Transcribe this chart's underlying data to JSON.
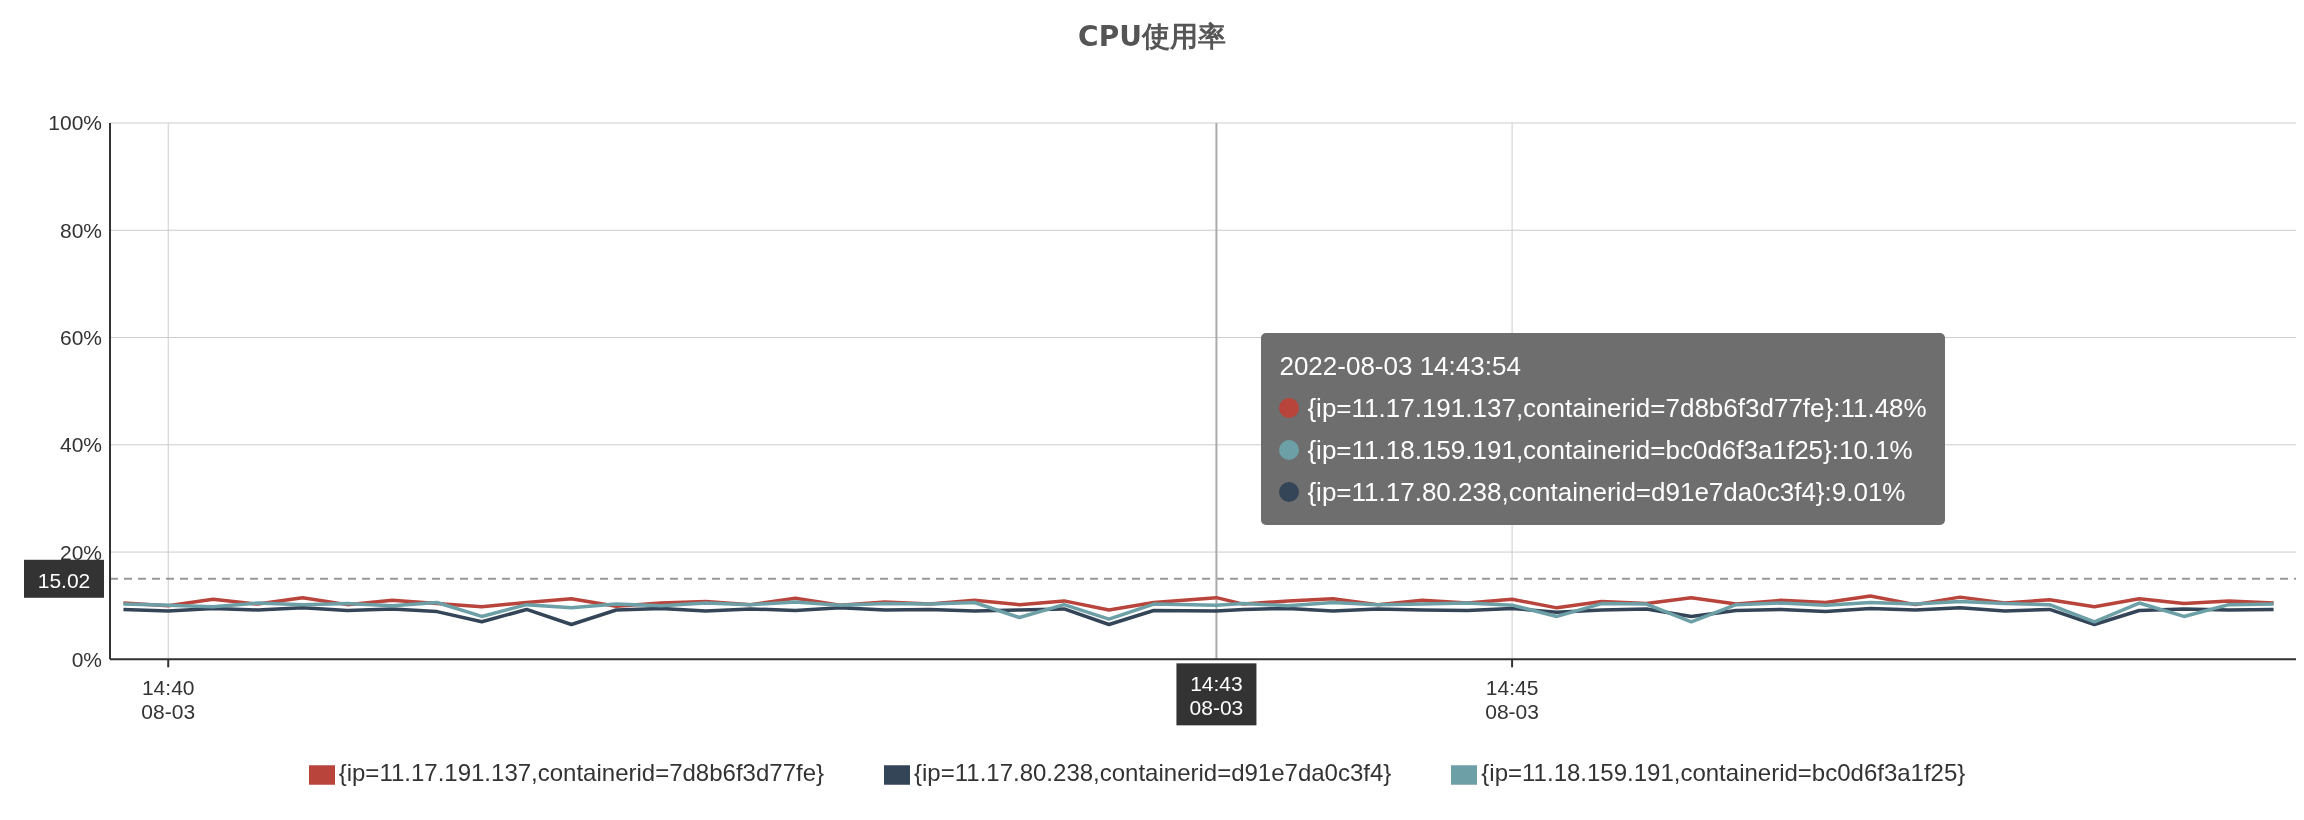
{
  "chart_data": {
    "type": "line",
    "title": "CPU使用率",
    "x": [
      "2022-08-03T14:39:50",
      "2022-08-03T14:40:00",
      "2022-08-03T14:40:10",
      "2022-08-03T14:40:20",
      "2022-08-03T14:40:30",
      "2022-08-03T14:40:40",
      "2022-08-03T14:40:50",
      "2022-08-03T14:41:00",
      "2022-08-03T14:41:10",
      "2022-08-03T14:41:20",
      "2022-08-03T14:41:30",
      "2022-08-03T14:41:40",
      "2022-08-03T14:41:50",
      "2022-08-03T14:42:00",
      "2022-08-03T14:42:10",
      "2022-08-03T14:42:20",
      "2022-08-03T14:42:30",
      "2022-08-03T14:42:40",
      "2022-08-03T14:42:50",
      "2022-08-03T14:43:00",
      "2022-08-03T14:43:10",
      "2022-08-03T14:43:20",
      "2022-08-03T14:43:30",
      "2022-08-03T14:43:40",
      "2022-08-03T14:43:54",
      "2022-08-03T14:44:00",
      "2022-08-03T14:44:10",
      "2022-08-03T14:44:20",
      "2022-08-03T14:44:30",
      "2022-08-03T14:44:40",
      "2022-08-03T14:44:50",
      "2022-08-03T14:45:00",
      "2022-08-03T14:45:10",
      "2022-08-03T14:45:20",
      "2022-08-03T14:45:30",
      "2022-08-03T14:45:40",
      "2022-08-03T14:45:50",
      "2022-08-03T14:46:00",
      "2022-08-03T14:46:10",
      "2022-08-03T14:46:20",
      "2022-08-03T14:46:30",
      "2022-08-03T14:46:40",
      "2022-08-03T14:46:50",
      "2022-08-03T14:47:00",
      "2022-08-03T14:47:10",
      "2022-08-03T14:47:20",
      "2022-08-03T14:47:30",
      "2022-08-03T14:47:40",
      "2022-08-03T14:47:50"
    ],
    "series": [
      {
        "name": "{ip=11.17.191.137,containerid=7d8b6f3d77fe}",
        "color": "#b8443b",
        "values": [
          10.5,
          10.0,
          11.2,
          10.3,
          11.5,
          10.2,
          11.0,
          10.4,
          9.8,
          10.6,
          11.3,
          9.9,
          10.5,
          10.8,
          10.2,
          11.4,
          10.1,
          10.7,
          10.3,
          11.0,
          10.2,
          10.9,
          9.2,
          10.6,
          11.5,
          10.3,
          10.9,
          11.3,
          10.2,
          11.0,
          10.5,
          11.2,
          9.6,
          10.8,
          10.4,
          11.5,
          10.3,
          11.0,
          10.6,
          11.8,
          10.2,
          11.6,
          10.5,
          11.1,
          9.8,
          11.3,
          10.4,
          10.9,
          10.5
        ]
      },
      {
        "name": "{ip=11.17.80.238,containerid=d91e7da0c3f4}",
        "color": "#344558",
        "values": [
          9.3,
          9.0,
          9.5,
          9.2,
          9.6,
          9.1,
          9.4,
          8.9,
          7.0,
          9.3,
          6.5,
          9.2,
          9.5,
          9.0,
          9.4,
          9.1,
          9.6,
          9.2,
          9.3,
          9.0,
          9.2,
          9.4,
          6.5,
          9.1,
          9.0,
          9.3,
          9.5,
          9.0,
          9.4,
          9.2,
          9.1,
          9.5,
          8.8,
          9.2,
          9.4,
          8.0,
          9.1,
          9.3,
          8.9,
          9.5,
          9.2,
          9.6,
          9.0,
          9.3,
          6.5,
          9.1,
          9.4,
          9.2,
          9.3
        ]
      },
      {
        "name": "{ip=11.18.159.191,containerid=bc0d6f3a1f25}",
        "color": "#6c9fa6",
        "values": [
          10.3,
          10.1,
          9.8,
          10.5,
          10.2,
          10.4,
          10.0,
          10.6,
          8.0,
          10.2,
          9.6,
          10.3,
          10.0,
          10.5,
          10.2,
          10.7,
          10.1,
          10.4,
          10.3,
          10.6,
          7.8,
          10.2,
          7.5,
          10.3,
          10.1,
          10.4,
          10.0,
          10.6,
          10.2,
          10.3,
          10.5,
          10.1,
          8.0,
          10.4,
          10.3,
          7.0,
          10.2,
          10.5,
          10.1,
          10.6,
          10.3,
          10.8,
          10.4,
          10.2,
          7.0,
          10.5,
          8.0,
          10.2,
          10.3
        ]
      }
    ],
    "xlim": [
      "2022-08-03T14:39:47",
      "2022-08-03T14:47:55"
    ],
    "xticks": [
      {
        "value": "2022-08-03T14:40",
        "label": "14:40\n08-03"
      },
      {
        "value": "2022-08-03T14:45",
        "label": "14:45\n08-03"
      }
    ],
    "ylim": [
      0,
      100
    ],
    "yticks": [
      {
        "value": 0,
        "label": "0%"
      },
      {
        "value": 20,
        "label": "20%"
      },
      {
        "value": 40,
        "label": "40%"
      },
      {
        "value": 60,
        "label": "60%"
      },
      {
        "value": 80,
        "label": "80%"
      },
      {
        "value": 100,
        "label": "100%"
      }
    ],
    "ref_lines": [
      {
        "axis": "y",
        "value": 15.02,
        "label": "15.02",
        "line_style": "dashed",
        "color": "#999999"
      },
      {
        "axis": "x",
        "value": "2022-08-03T14:43:54",
        "label": "14:43\n08-03",
        "line_style": "solid",
        "color": "#aaaaaa"
      }
    ],
    "annotations": [
      "2022-08-03 14:43:54",
      "{ip=11.17.191.137,containerid=7d8b6f3d77fe}:11.48%",
      "{ip=11.18.159.191,containerid=bc0d6f3a1f25}:10.1%",
      "{ip=11.17.80.238,containerid=d91e7da0c3f4}:9.01%"
    ],
    "grid": true,
    "legend": "bottom",
    "marker": "none",
    "line_style": "solid"
  }
}
